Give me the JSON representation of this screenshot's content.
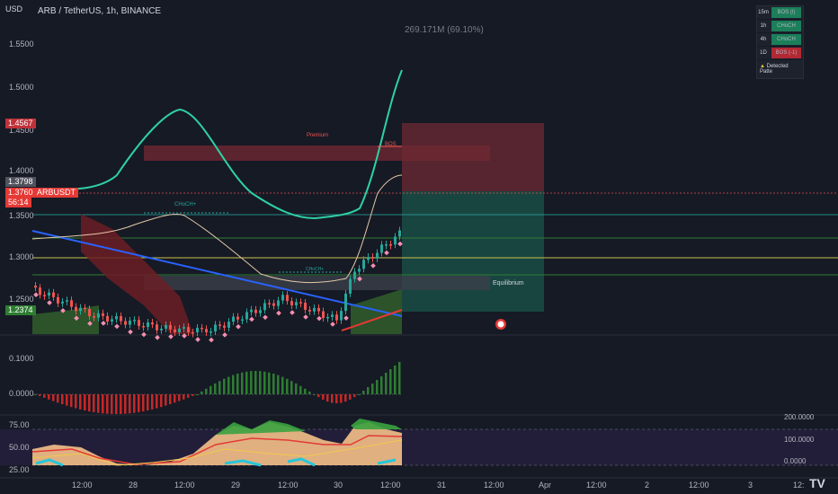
{
  "header": {
    "currency": "USD",
    "symbol_title": "ARB / TetherUS, 1h, BINANCE",
    "measure_label": "269.171M (69.10%)"
  },
  "price_axis": [
    "1.5500",
    "1.5000",
    "1.4500",
    "1.4000",
    "1.3500",
    "1.3000",
    "1.2500"
  ],
  "price_tags": {
    "high": "1.4567",
    "prev": "1.3798",
    "last": "1.3760",
    "ticker": "ARBUSDT",
    "countdown": "56:14",
    "low": "1.2374"
  },
  "annotations": {
    "premium": "Premium",
    "equilibrium": "Equilibrium",
    "choch_top": "CHoCH+",
    "choch_mid": "CHoCH+",
    "bos": "BOS"
  },
  "oscillator_axis": [
    "0.1000",
    "0.0000"
  ],
  "rsi_axis_left": [
    "75.00",
    "50.00",
    "25.00"
  ],
  "rsi_axis_right": [
    "200.0000",
    "100.0000",
    "0.0000"
  ],
  "time_axis": [
    "12:00",
    "28",
    "12:00",
    "29",
    "12:00",
    "30",
    "12:00",
    "31",
    "12:00",
    "Apr",
    "12:00",
    "2",
    "12:00",
    "3",
    "12:"
  ],
  "mtf_table": {
    "rows": [
      {
        "tf": "15m",
        "signal": "BOS (I)",
        "color": "#1b7f5a"
      },
      {
        "tf": "1h",
        "signal": "CHoCH",
        "color": "#1b7f5a"
      },
      {
        "tf": "4h",
        "signal": "CHoCH",
        "color": "#1b7f5a"
      },
      {
        "tf": "1D",
        "signal": "BOS (-1)",
        "color": "#b22833"
      }
    ],
    "footer": "Detected Patte"
  },
  "colors": {
    "up": "#26a69a",
    "down": "#ef5350",
    "background": "#161a25"
  }
}
